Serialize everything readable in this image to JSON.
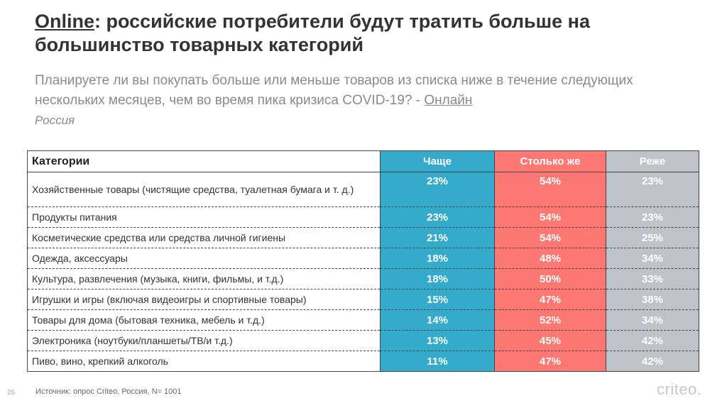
{
  "title": {
    "highlight": "Online",
    "rest": ": российские потребители будут тратить больше на большинство товарных категорий"
  },
  "subtitle": {
    "text": "Планируете ли вы покупать больше или меньше товаров из списка ниже в течение следующих нескольких месяцев, чем во время пика кризиса COVID-19? - ",
    "link": "Онлайн",
    "region": "Россия"
  },
  "colors": {
    "more": "#35abcb",
    "same": "#fd7872",
    "less": "#bfc2c6"
  },
  "table": {
    "headers": [
      "Категории",
      "Чаще",
      "Столько же",
      "Реже"
    ],
    "rows": [
      {
        "category": "Хозяйственные товары (чистящие средства, туалетная бумага и т. д.)",
        "more": "23%",
        "same": "54%",
        "less": "23%"
      },
      {
        "category": "Продукты питания",
        "more": "23%",
        "same": "54%",
        "less": "23%"
      },
      {
        "category": "Косметические средства или средства личной гигиены",
        "more": "21%",
        "same": "54%",
        "less": "25%"
      },
      {
        "category": "Одежда, аксессуары",
        "more": "18%",
        "same": "48%",
        "less": "34%"
      },
      {
        "category": "Культура, развлечения (музыка, книги, фильмы, и т.д.)",
        "more": "18%",
        "same": "50%",
        "less": "33%"
      },
      {
        "category": "Игрушки и игры (включая видеоигры и спортивные товары)",
        "more": "15%",
        "same": "47%",
        "less": "38%"
      },
      {
        "category": "Товары для дома (бытовая техника, мебель и т.д.)",
        "more": "14%",
        "same": "52%",
        "less": "34%"
      },
      {
        "category": "Электроника (ноутбуки/планшеты/ТВ/и т.д.)",
        "more": "13%",
        "same": "45%",
        "less": "42%"
      },
      {
        "category": "Пиво, вино, крепкий алкоголь",
        "more": "11%",
        "same": "47%",
        "less": "42%"
      }
    ]
  },
  "footer": {
    "page": "26",
    "source": "Источник: опрос Criteo, Россия, N= 1001",
    "logo": "criteo."
  }
}
